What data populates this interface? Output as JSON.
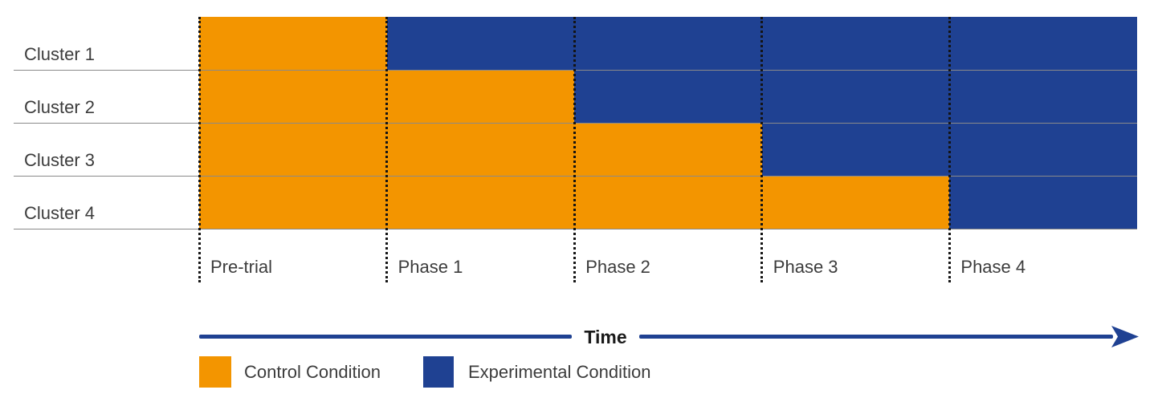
{
  "chart_data": {
    "type": "heatmap",
    "rows": [
      "Cluster 1",
      "Cluster 2",
      "Cluster 3",
      "Cluster 4"
    ],
    "columns": [
      "Pre-trial",
      "Phase 1",
      "Phase 2",
      "Phase 3",
      "Phase 4"
    ],
    "cells": [
      [
        "control",
        "experimental",
        "experimental",
        "experimental",
        "experimental"
      ],
      [
        "control",
        "control",
        "experimental",
        "experimental",
        "experimental"
      ],
      [
        "control",
        "control",
        "control",
        "experimental",
        "experimental"
      ],
      [
        "control",
        "control",
        "control",
        "control",
        "experimental"
      ]
    ],
    "colors": {
      "control": "#F39500",
      "experimental": "#1F4192"
    },
    "xlabel": "Time",
    "legend": [
      {
        "key": "control",
        "label": "Control Condition"
      },
      {
        "key": "experimental",
        "label": "Experimental Condition"
      }
    ],
    "layout": {
      "legend_position": "bottom-left",
      "grid": "horizontal-lines-only",
      "phase_dividers": "dotted-vertical",
      "x_axis": "time-arrow-right"
    }
  }
}
